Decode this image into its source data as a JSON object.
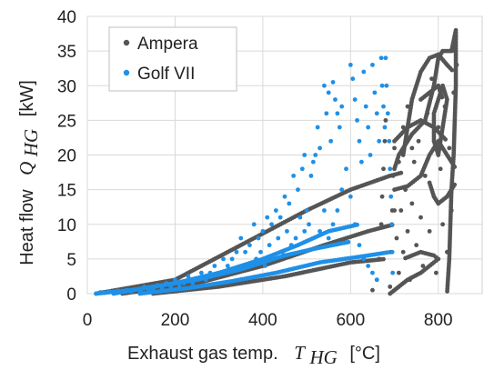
{
  "chart_data": {
    "type": "scatter",
    "xlabel_text": "Exhaust gas temp.",
    "xlabel_symbol": "T",
    "xlabel_sub": "HG",
    "xlabel_unit": "[°C]",
    "ylabel_text": "Heat flow",
    "ylabel_symbol": "Q",
    "ylabel_sub": "HG",
    "ylabel_unit": "[kW]",
    "xlim": [
      0,
      900
    ],
    "ylim": [
      0,
      40
    ],
    "xticks": [
      0,
      200,
      400,
      600,
      800
    ],
    "yticks": [
      0,
      5,
      10,
      15,
      20,
      25,
      30,
      35,
      40
    ],
    "grid": true,
    "legend_position": "top-left",
    "series": [
      {
        "name": "Ampera",
        "color": "#555555",
        "paths": [
          [
            [
              20,
              0
            ],
            [
              200,
              2
            ],
            [
              380,
              8
            ],
            [
              500,
              12
            ],
            [
              600,
              15
            ],
            [
              690,
              17
            ],
            [
              720,
              17.5
            ]
          ],
          [
            [
              80,
              0
            ],
            [
              250,
              1.5
            ],
            [
              400,
              4
            ],
            [
              540,
              7
            ],
            [
              640,
              9
            ],
            [
              700,
              10
            ]
          ],
          [
            [
              150,
              0
            ],
            [
              300,
              1
            ],
            [
              450,
              2.5
            ],
            [
              600,
              4.5
            ],
            [
              680,
              5
            ]
          ],
          [
            [
              690,
              0
            ],
            [
              730,
              2
            ],
            [
              760,
              3
            ],
            [
              790,
              4.5
            ],
            [
              800,
              5
            ],
            [
              790,
              5.5
            ],
            [
              760,
              6
            ],
            [
              720,
              5
            ]
          ],
          [
            [
              700,
              18
            ],
            [
              710,
              20
            ],
            [
              740,
              23
            ],
            [
              770,
              25
            ],
            [
              790,
              30
            ],
            [
              800,
              34
            ],
            [
              810,
              35
            ],
            [
              830,
              35
            ],
            [
              840,
              38
            ],
            [
              840,
              30
            ],
            [
              835,
              20
            ],
            [
              830,
              15
            ],
            [
              825,
              5
            ],
            [
              820,
              0
            ]
          ],
          [
            [
              720,
              20
            ],
            [
              740,
              28
            ],
            [
              760,
              32
            ],
            [
              780,
              34
            ],
            [
              800,
              34.5
            ],
            [
              820,
              33
            ],
            [
              835,
              32
            ]
          ],
          [
            [
              790,
              26
            ],
            [
              800,
              28
            ],
            [
              810,
              30
            ],
            [
              820,
              28
            ],
            [
              810,
              24
            ],
            [
              800,
              20
            ],
            [
              790,
              22
            ],
            [
              790,
              26
            ]
          ],
          [
            [
              700,
              15
            ],
            [
              730,
              15.5
            ],
            [
              760,
              17
            ],
            [
              780,
              20
            ],
            [
              800,
              22
            ],
            [
              820,
              20
            ],
            [
              840,
              18
            ]
          ],
          [
            [
              780,
              16
            ],
            [
              790,
              14
            ],
            [
              800,
              13
            ],
            [
              820,
              14
            ],
            [
              840,
              16
            ]
          ],
          [
            [
              700,
              22
            ],
            [
              730,
              24
            ],
            [
              760,
              25
            ],
            [
              790,
              24
            ],
            [
              820,
              22
            ]
          ],
          [
            [
              760,
              28
            ],
            [
              780,
              29
            ],
            [
              800,
              30
            ],
            [
              810,
              28
            ]
          ]
        ],
        "points": [
          [
            650,
            0.5
          ],
          [
            660,
            2
          ],
          [
            665,
            5
          ],
          [
            670,
            10
          ],
          [
            672,
            14
          ],
          [
            675,
            18
          ],
          [
            678,
            22
          ],
          [
            680,
            25
          ],
          [
            690,
            1
          ],
          [
            692,
            6
          ],
          [
            695,
            12
          ],
          [
            697,
            17
          ],
          [
            700,
            21
          ],
          [
            705,
            8
          ],
          [
            710,
            3
          ],
          [
            715,
            12
          ],
          [
            720,
            6
          ],
          [
            725,
            15
          ],
          [
            730,
            9
          ],
          [
            735,
            2
          ],
          [
            740,
            13
          ],
          [
            745,
            19
          ],
          [
            750,
            7
          ],
          [
            755,
            22
          ],
          [
            760,
            11
          ],
          [
            765,
            4
          ],
          [
            770,
            17
          ],
          [
            775,
            26
          ],
          [
            780,
            9
          ],
          [
            785,
            31
          ],
          [
            790,
            14
          ],
          [
            795,
            3
          ],
          [
            800,
            24
          ],
          [
            805,
            18
          ],
          [
            810,
            10
          ],
          [
            815,
            27
          ],
          [
            820,
            6
          ],
          [
            825,
            21
          ],
          [
            830,
            12
          ],
          [
            835,
            29
          ],
          [
            838,
            35
          ],
          [
            840,
            37
          ],
          [
            842,
            33
          ],
          [
            700,
            12
          ],
          [
            710,
            19
          ],
          [
            720,
            24
          ],
          [
            730,
            27
          ],
          [
            740,
            21
          ]
        ]
      },
      {
        "name": "Golf VII",
        "color": "#1E90E8",
        "paths": [
          [
            [
              20,
              0
            ],
            [
              100,
              0.5
            ],
            [
              200,
              1.5
            ],
            [
              300,
              3
            ],
            [
              400,
              5
            ],
            [
              480,
              7
            ],
            [
              550,
              9
            ],
            [
              620,
              10
            ]
          ],
          [
            [
              60,
              0
            ],
            [
              150,
              1
            ],
            [
              250,
              2
            ],
            [
              350,
              3.5
            ],
            [
              450,
              5.5
            ],
            [
              520,
              6.5
            ],
            [
              600,
              7.5
            ]
          ],
          [
            [
              120,
              0
            ],
            [
              230,
              0.8
            ],
            [
              330,
              1.8
            ],
            [
              430,
              3
            ],
            [
              530,
              4.5
            ],
            [
              640,
              5.5
            ],
            [
              690,
              6
            ]
          ]
        ],
        "points": [
          [
            540,
            30
          ],
          [
            550,
            29
          ],
          [
            560,
            30.5
          ],
          [
            565,
            28
          ],
          [
            570,
            26
          ],
          [
            575,
            24
          ],
          [
            580,
            27
          ],
          [
            545,
            26
          ],
          [
            555,
            22
          ],
          [
            520,
            20
          ],
          [
            525,
            24
          ],
          [
            530,
            21
          ],
          [
            510,
            17
          ],
          [
            515,
            19
          ],
          [
            490,
            18
          ],
          [
            495,
            20
          ],
          [
            470,
            17
          ],
          [
            480,
            15
          ],
          [
            460,
            13
          ],
          [
            450,
            14
          ],
          [
            440,
            11
          ],
          [
            430,
            12
          ],
          [
            420,
            10
          ],
          [
            410,
            11
          ],
          [
            400,
            9
          ],
          [
            390,
            8
          ],
          [
            380,
            10
          ],
          [
            370,
            7
          ],
          [
            360,
            6
          ],
          [
            350,
            8
          ],
          [
            340,
            6
          ],
          [
            330,
            5
          ],
          [
            320,
            4
          ],
          [
            310,
            5
          ],
          [
            300,
            3
          ],
          [
            290,
            4
          ],
          [
            280,
            3
          ],
          [
            270,
            2
          ],
          [
            260,
            3
          ],
          [
            250,
            2
          ],
          [
            240,
            1.5
          ],
          [
            230,
            2.5
          ],
          [
            220,
            1.5
          ],
          [
            210,
            1
          ],
          [
            200,
            2
          ],
          [
            190,
            1
          ],
          [
            180,
            1.5
          ],
          [
            170,
            0.8
          ],
          [
            160,
            1.2
          ],
          [
            150,
            0.7
          ],
          [
            140,
            0.5
          ],
          [
            130,
            1
          ],
          [
            120,
            0.4
          ],
          [
            110,
            0.6
          ],
          [
            100,
            0.3
          ],
          [
            90,
            0.5
          ],
          [
            80,
            0.2
          ],
          [
            70,
            0.4
          ],
          [
            60,
            0.2
          ],
          [
            50,
            0.3
          ],
          [
            40,
            0.1
          ],
          [
            30,
            0.2
          ],
          [
            600,
            33
          ],
          [
            605,
            31
          ],
          [
            610,
            28
          ],
          [
            615,
            25
          ],
          [
            620,
            22
          ],
          [
            625,
            19
          ],
          [
            630,
            32
          ],
          [
            635,
            27
          ],
          [
            640,
            24
          ],
          [
            645,
            20
          ],
          [
            650,
            33
          ],
          [
            655,
            29
          ],
          [
            660,
            26
          ],
          [
            665,
            22
          ],
          [
            670,
            34
          ],
          [
            672,
            30
          ],
          [
            675,
            27
          ],
          [
            678,
            24
          ],
          [
            680,
            34
          ],
          [
            682,
            30
          ],
          [
            685,
            26
          ],
          [
            688,
            22
          ],
          [
            690,
            18
          ],
          [
            692,
            14
          ],
          [
            694,
            10
          ],
          [
            695,
            6
          ],
          [
            696,
            3
          ],
          [
            600,
            14
          ],
          [
            610,
            10
          ],
          [
            620,
            7
          ],
          [
            630,
            5
          ],
          [
            640,
            4
          ],
          [
            650,
            3
          ],
          [
            660,
            2
          ],
          [
            590,
            18
          ],
          [
            580,
            15
          ],
          [
            570,
            12
          ],
          [
            560,
            10
          ],
          [
            550,
            8
          ],
          [
            540,
            12
          ],
          [
            530,
            9
          ],
          [
            500,
            12
          ],
          [
            505,
            10
          ],
          [
            495,
            9
          ],
          [
            485,
            11
          ],
          [
            475,
            8
          ],
          [
            465,
            7
          ],
          [
            455,
            9
          ],
          [
            445,
            6
          ],
          [
            435,
            8
          ],
          [
            425,
            5
          ],
          [
            415,
            7
          ],
          [
            405,
            4
          ],
          [
            395,
            6
          ],
          [
            385,
            5
          ]
        ]
      }
    ]
  }
}
